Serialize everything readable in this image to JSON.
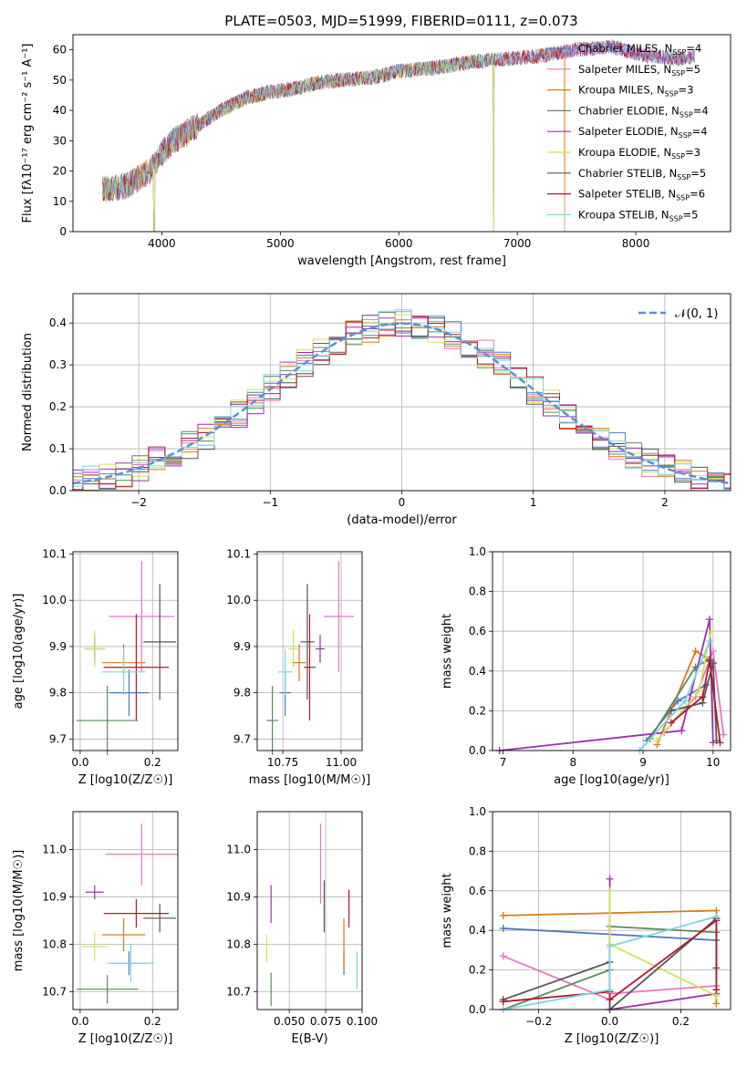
{
  "figure": {
    "title": "PLATE=0503, MJD=51999, FIBERID=0111, z=0.073"
  },
  "series": [
    {
      "name": "Chabrier MILES",
      "nssp": "4",
      "color": "#4b77be"
    },
    {
      "name": "Salpeter MILES",
      "nssp": "5",
      "color": "#e377c2"
    },
    {
      "name": "Kroupa MILES",
      "nssp": "3",
      "color": "#d97a1a"
    },
    {
      "name": "Chabrier ELODIE",
      "nssp": "4",
      "color": "#5a8a5a"
    },
    {
      "name": "Salpeter ELODIE",
      "nssp": "4",
      "color": "#9b30b0"
    },
    {
      "name": "Kroupa ELODIE",
      "nssp": "3",
      "color": "#d4e157"
    },
    {
      "name": "Chabrier STELIB",
      "nssp": "5",
      "color": "#555555"
    },
    {
      "name": "Salpeter STELIB",
      "nssp": "6",
      "color": "#b2182b"
    },
    {
      "name": "Kroupa STELIB",
      "nssp": "5",
      "color": "#7fd4e0"
    }
  ],
  "chart_data": [
    {
      "id": "spectrum",
      "type": "line",
      "xlabel": "wavelength [Angstrom, rest frame]",
      "ylabel": "Flux [fλ10⁻¹⁷ erg cm⁻² s⁻¹ A⁻¹]",
      "xlim": [
        3250,
        8800
      ],
      "ylim": [
        0,
        65
      ],
      "xticks": [
        4000,
        5000,
        6000,
        7000,
        8000
      ],
      "yticks": [
        0,
        10,
        20,
        30,
        40,
        50,
        60
      ],
      "continuum": [
        [
          3500,
          14
        ],
        [
          3700,
          15
        ],
        [
          3900,
          20
        ],
        [
          4000,
          26
        ],
        [
          4100,
          30
        ],
        [
          4300,
          35
        ],
        [
          4500,
          40
        ],
        [
          4700,
          44
        ],
        [
          4900,
          46
        ],
        [
          5100,
          47
        ],
        [
          5300,
          49
        ],
        [
          5500,
          50
        ],
        [
          5800,
          51
        ],
        [
          6000,
          53
        ],
        [
          6300,
          54
        ],
        [
          6600,
          56
        ],
        [
          6900,
          57
        ],
        [
          7200,
          58
        ],
        [
          7500,
          60
        ],
        [
          7800,
          61
        ],
        [
          8100,
          58
        ],
        [
          8400,
          57
        ],
        [
          8500,
          58
        ]
      ],
      "dips": [
        [
          3934,
          0
        ],
        [
          6800,
          0
        ],
        [
          7400,
          0
        ]
      ]
    },
    {
      "id": "residuals",
      "type": "step",
      "xlabel": "(data-model)/error",
      "ylabel": "Normed distribution",
      "xlim": [
        -2.5,
        2.5
      ],
      "ylim": [
        0,
        0.47
      ],
      "xticks": [
        -2,
        -1,
        0,
        1,
        2
      ],
      "yticks": [
        0.0,
        0.1,
        0.2,
        0.3,
        0.4
      ],
      "legend": "𝒩(0, 1)",
      "legend_color": "#5a8fd6"
    },
    {
      "id": "age_vs_Z",
      "type": "errorbar",
      "xlabel": "Z [log10(Z/Z☉)]",
      "ylabel": "age  [log10(age/yr)]",
      "xlim": [
        -0.02,
        0.27
      ],
      "ylim": [
        9.675,
        10.105
      ],
      "xticks": [
        0.0,
        0.2
      ],
      "yticks": [
        9.7,
        9.8,
        9.9,
        10.0,
        10.1
      ],
      "points": [
        {
          "s": 0,
          "x": 0.135,
          "y": 9.8,
          "xe": 0.055,
          "ye": 0.05
        },
        {
          "s": 1,
          "x": 0.17,
          "y": 9.965,
          "xe": 0.09,
          "ye": 0.12
        },
        {
          "s": 2,
          "x": 0.12,
          "y": 9.865,
          "xe": 0.06,
          "ye": 0.04
        },
        {
          "s": 3,
          "x": 0.075,
          "y": 9.74,
          "xe": 0.085,
          "ye": 0.075
        },
        {
          "s": 4,
          "x": 0.04,
          "y": 9.895,
          "xe": 0.025,
          "ye": 0.03
        },
        {
          "s": 5,
          "x": 0.04,
          "y": 9.895,
          "xe": 0.03,
          "ye": 0.04
        },
        {
          "s": 6,
          "x": 0.22,
          "y": 9.91,
          "xe": 0.045,
          "ye": 0.125
        },
        {
          "s": 7,
          "x": 0.155,
          "y": 9.855,
          "xe": 0.09,
          "ye": 0.115
        },
        {
          "s": 8,
          "x": 0.12,
          "y": 9.845,
          "xe": 0.06,
          "ye": 0.05
        }
      ]
    },
    {
      "id": "age_vs_mass",
      "type": "errorbar",
      "xlabel": "mass [log10(M/M☉)]",
      "ylabel": "",
      "xlim": [
        10.64,
        11.09
      ],
      "ylim": [
        9.675,
        10.105
      ],
      "xticks": [
        10.75,
        11.0
      ],
      "yticks": [
        9.7,
        9.8,
        9.9,
        10.0,
        10.1
      ],
      "points": [
        {
          "s": 0,
          "x": 10.76,
          "y": 9.8,
          "xe": 0.025,
          "ye": 0.05
        },
        {
          "s": 1,
          "x": 10.99,
          "y": 9.965,
          "xe": 0.065,
          "ye": 0.12
        },
        {
          "s": 2,
          "x": 10.82,
          "y": 9.865,
          "xe": 0.03,
          "ye": 0.04
        },
        {
          "s": 3,
          "x": 10.705,
          "y": 9.74,
          "xe": 0.025,
          "ye": 0.075
        },
        {
          "s": 4,
          "x": 10.91,
          "y": 9.895,
          "xe": 0.02,
          "ye": 0.03
        },
        {
          "s": 5,
          "x": 10.795,
          "y": 9.895,
          "xe": 0.02,
          "ye": 0.04
        },
        {
          "s": 6,
          "x": 10.855,
          "y": 9.91,
          "xe": 0.03,
          "ye": 0.125
        },
        {
          "s": 7,
          "x": 10.865,
          "y": 9.855,
          "xe": 0.025,
          "ye": 0.115
        },
        {
          "s": 8,
          "x": 10.76,
          "y": 9.845,
          "xe": 0.03,
          "ye": 0.05
        }
      ]
    },
    {
      "id": "weight_vs_age",
      "type": "line",
      "xlabel": "age  [log10(age/yr)]",
      "ylabel": "mass weight",
      "xlim": [
        6.85,
        10.25
      ],
      "ylim": [
        0,
        1
      ],
      "xticks": [
        7,
        8,
        9,
        10
      ],
      "yticks": [
        0.0,
        0.2,
        0.4,
        0.6,
        0.8,
        1.0
      ],
      "lines": [
        {
          "s": 0,
          "pts": [
            [
              9.05,
              0.05
            ],
            [
              9.5,
              0.25
            ],
            [
              9.9,
              0.33
            ]
          ]
        },
        {
          "s": 1,
          "pts": [
            [
              9.3,
              0.09
            ],
            [
              9.75,
              0.27
            ],
            [
              10.0,
              0.5
            ],
            [
              10.15,
              0.08
            ]
          ]
        },
        {
          "s": 2,
          "pts": [
            [
              9.2,
              0.03
            ],
            [
              9.75,
              0.5
            ],
            [
              9.9,
              0.47
            ]
          ]
        },
        {
          "s": 3,
          "pts": [
            [
              9.1,
              0.06
            ],
            [
              9.75,
              0.42
            ],
            [
              9.95,
              0.46
            ]
          ]
        },
        {
          "s": 4,
          "pts": [
            [
              6.95,
              0.0
            ],
            [
              9.55,
              0.1
            ],
            [
              9.95,
              0.66
            ],
            [
              10.0,
              0.04
            ]
          ]
        },
        {
          "s": 5,
          "pts": [
            [
              9.2,
              0.05
            ],
            [
              9.8,
              0.3
            ],
            [
              9.97,
              0.6
            ]
          ]
        },
        {
          "s": 6,
          "pts": [
            [
              9.4,
              0.2
            ],
            [
              9.85,
              0.24
            ],
            [
              10.0,
              0.44
            ],
            [
              10.05,
              0.05
            ]
          ]
        },
        {
          "s": 7,
          "pts": [
            [
              9.4,
              0.14
            ],
            [
              9.85,
              0.27
            ],
            [
              9.95,
              0.45
            ],
            [
              10.1,
              0.04
            ]
          ]
        },
        {
          "s": 8,
          "pts": [
            [
              8.95,
              0.0
            ],
            [
              9.6,
              0.25
            ],
            [
              9.95,
              0.55
            ]
          ]
        }
      ]
    },
    {
      "id": "mass_vs_Z",
      "type": "errorbar",
      "xlabel": "Z [log10(Z/Z☉)]",
      "ylabel": "mass [log10(M/M☉)]",
      "xlim": [
        -0.02,
        0.27
      ],
      "ylim": [
        10.662,
        11.08
      ],
      "xticks": [
        0.0,
        0.2
      ],
      "yticks": [
        10.7,
        10.8,
        10.9,
        11.0
      ],
      "points": [
        {
          "s": 0,
          "x": 0.135,
          "y": 10.76,
          "xe": 0.05,
          "ye": 0.025
        },
        {
          "s": 1,
          "x": 0.17,
          "y": 10.99,
          "xe": 0.1,
          "ye": 0.065
        },
        {
          "s": 2,
          "x": 0.12,
          "y": 10.82,
          "xe": 0.06,
          "ye": 0.035
        },
        {
          "s": 3,
          "x": 0.075,
          "y": 10.705,
          "xe": 0.085,
          "ye": 0.03
        },
        {
          "s": 4,
          "x": 0.04,
          "y": 10.91,
          "xe": 0.025,
          "ye": 0.015
        },
        {
          "s": 5,
          "x": 0.04,
          "y": 10.795,
          "xe": 0.035,
          "ye": 0.03
        },
        {
          "s": 6,
          "x": 0.22,
          "y": 10.855,
          "xe": 0.045,
          "ye": 0.03
        },
        {
          "s": 7,
          "x": 0.155,
          "y": 10.865,
          "xe": 0.09,
          "ye": 0.03
        },
        {
          "s": 8,
          "x": 0.14,
          "y": 10.76,
          "xe": 0.065,
          "ye": 0.04
        }
      ]
    },
    {
      "id": "mass_vs_ebv",
      "type": "errorbar",
      "xlabel": "E(B-V)",
      "ylabel": "",
      "xlim": [
        0.028,
        0.1
      ],
      "ylim": [
        10.662,
        11.08
      ],
      "xticks": [
        0.05,
        0.075,
        0.1
      ],
      "xticklabels": [
        "0.050",
        "0.075",
        "0.100"
      ],
      "yticks": [
        10.7,
        10.8,
        10.9,
        11.0
      ],
      "points": [
        {
          "s": 0,
          "x": 0.0875,
          "y": 10.76,
          "xe": 0,
          "ye": 0.025
        },
        {
          "s": 1,
          "x": 0.0715,
          "y": 10.97,
          "xe": 0,
          "ye": 0.085
        },
        {
          "s": 2,
          "x": 0.0875,
          "y": 10.8,
          "xe": 0,
          "ye": 0.055
        },
        {
          "s": 3,
          "x": 0.0375,
          "y": 10.705,
          "xe": 0,
          "ye": 0.035
        },
        {
          "s": 4,
          "x": 0.0375,
          "y": 10.885,
          "xe": 0,
          "ye": 0.04
        },
        {
          "s": 5,
          "x": 0.0345,
          "y": 10.79,
          "xe": 0,
          "ye": 0.03
        },
        {
          "s": 6,
          "x": 0.074,
          "y": 10.88,
          "xe": 0,
          "ye": 0.055
        },
        {
          "s": 7,
          "x": 0.091,
          "y": 10.875,
          "xe": 0,
          "ye": 0.04
        },
        {
          "s": 8,
          "x": 0.0965,
          "y": 10.745,
          "xe": 0,
          "ye": 0.04
        }
      ]
    },
    {
      "id": "weight_vs_Z",
      "type": "line",
      "xlabel": "Z [log10(Z/Z☉)]",
      "ylabel": "mass weight",
      "xlim": [
        -0.33,
        0.34
      ],
      "ylim": [
        0,
        1
      ],
      "xticks": [
        -0.2,
        0.0,
        0.2
      ],
      "yticks": [
        0.0,
        0.2,
        0.4,
        0.6,
        0.8,
        1.0
      ],
      "lines": [
        {
          "s": 0,
          "pts": [
            [
              -0.3,
              0.41
            ],
            [
              0.3,
              0.35
            ]
          ]
        },
        {
          "s": 1,
          "pts": [
            [
              -0.3,
              0.27
            ],
            [
              0.0,
              0.05
            ],
            [
              0.0,
              0.08
            ],
            [
              0.3,
              0.12
            ]
          ]
        },
        {
          "s": 2,
          "pts": [
            [
              -0.3,
              0.475
            ],
            [
              0.3,
              0.5
            ],
            [
              0.3,
              0.03
            ]
          ]
        },
        {
          "s": 3,
          "pts": [
            [
              -0.3,
              0.0
            ],
            [
              0.0,
              0.2
            ],
            [
              0.0,
              0.42
            ],
            [
              0.3,
              0.39
            ]
          ]
        },
        {
          "s": 4,
          "pts": [
            [
              0.0,
              0.66
            ],
            [
              0.0,
              0.0
            ],
            [
              0.3,
              0.08
            ]
          ]
        },
        {
          "s": 5,
          "pts": [
            [
              0.0,
              0.6
            ],
            [
              0.0,
              0.33
            ],
            [
              0.3,
              0.07
            ]
          ]
        },
        {
          "s": 6,
          "pts": [
            [
              -0.3,
              0.05
            ],
            [
              0.0,
              0.24
            ],
            [
              0.0,
              0.0
            ],
            [
              0.3,
              0.46
            ],
            [
              0.3,
              0.21
            ]
          ]
        },
        {
          "s": 7,
          "pts": [
            [
              -0.3,
              0.04
            ],
            [
              0.0,
              0.09
            ],
            [
              0.0,
              0.05
            ],
            [
              0.3,
              0.45
            ],
            [
              0.3,
              0.1
            ]
          ]
        },
        {
          "s": 8,
          "pts": [
            [
              -0.3,
              0.0
            ],
            [
              0.0,
              0.1
            ],
            [
              0.0,
              0.32
            ],
            [
              0.3,
              0.47
            ]
          ]
        }
      ]
    }
  ]
}
